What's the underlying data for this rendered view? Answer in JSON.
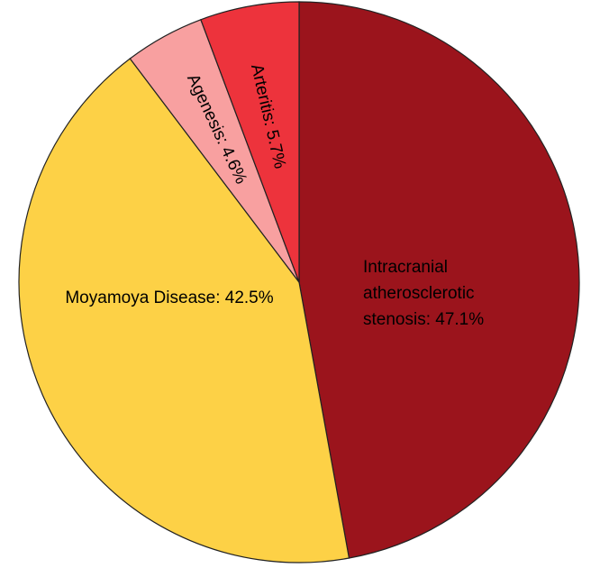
{
  "chart_data": {
    "type": "pie",
    "title": "",
    "start_angle_deg": 0,
    "direction": "clockwise",
    "legend": "none",
    "slices": [
      {
        "label": "Intracranial atherosclerotic stenosis",
        "value": 47.1,
        "label_lines": [
          "Intracranial",
          "atherosclerotic",
          "stenosis: 47.1%"
        ],
        "color": "#9b141c"
      },
      {
        "label": "Moyamoya Disease",
        "value": 42.5,
        "label_lines": [
          "Moyamoya Disease: 42.5%"
        ],
        "color": "#fdd146"
      },
      {
        "label": "Agenesis",
        "value": 4.6,
        "label_lines": [
          "Agenesis: 4.6%"
        ],
        "color": "#f8a0a0"
      },
      {
        "label": "Arteritis",
        "value": 5.7,
        "label_lines": [
          "Arteritis: 5.7%"
        ],
        "color": "#ed333c"
      }
    ]
  }
}
